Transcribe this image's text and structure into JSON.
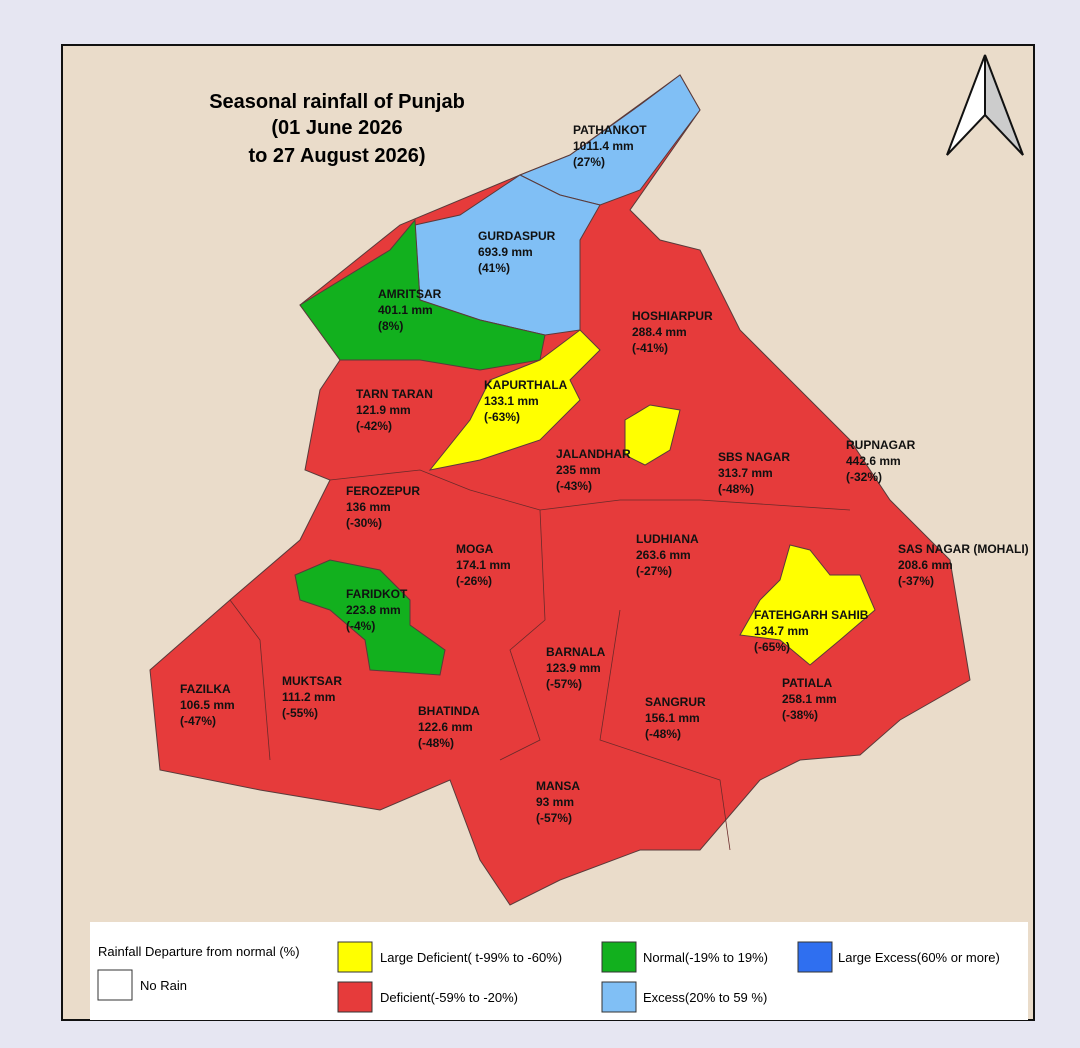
{
  "title": [
    "Seasonal rainfall of Punjab",
    "(01 June 2026",
    "to 27 August 2026)"
  ],
  "districts": [
    {
      "name": "PATHANKOT",
      "rainfall": "1011.4 mm",
      "departure": "(27%)"
    },
    {
      "name": "GURDASPUR",
      "rainfall": "693.9 mm",
      "departure": "(41%)"
    },
    {
      "name": "AMRITSAR",
      "rainfall": "401.1 mm",
      "departure": "(8%)"
    },
    {
      "name": "HOSHIARPUR",
      "rainfall": "288.4 mm",
      "departure": "(-41%)"
    },
    {
      "name": "TARN TARAN",
      "rainfall": "121.9 mm",
      "departure": "(-42%)"
    },
    {
      "name": "KAPURTHALA",
      "rainfall": "133.1 mm",
      "departure": "(-63%)"
    },
    {
      "name": "JALANDHAR",
      "rainfall": "235 mm",
      "departure": "(-43%)"
    },
    {
      "name": "SBS NAGAR",
      "rainfall": "313.7 mm",
      "departure": "(-48%)"
    },
    {
      "name": "RUPNAGAR",
      "rainfall": "442.6 mm",
      "departure": "(-32%)"
    },
    {
      "name": "FEROZEPUR",
      "rainfall": "136 mm",
      "departure": "(-30%)"
    },
    {
      "name": "MOGA",
      "rainfall": "174.1 mm",
      "departure": "(-26%)"
    },
    {
      "name": "LUDHIANA",
      "rainfall": "263.6 mm",
      "departure": "(-27%)"
    },
    {
      "name": "SAS NAGAR (MOHALI)",
      "rainfall": "208.6 mm",
      "departure": "(-37%)"
    },
    {
      "name": "FARIDKOT",
      "rainfall": "223.8 mm",
      "departure": "(-4%)"
    },
    {
      "name": "FATEHGARH SAHIB",
      "rainfall": "134.7 mm",
      "departure": "(-65%)"
    },
    {
      "name": "BARNALA",
      "rainfall": "123.9 mm",
      "departure": "(-57%)"
    },
    {
      "name": "FAZILKA",
      "rainfall": "106.5 mm",
      "departure": "(-47%)"
    },
    {
      "name": "MUKTSAR",
      "rainfall": "111.2 mm",
      "departure": "(-55%)"
    },
    {
      "name": "BHATINDA",
      "rainfall": "122.6 mm",
      "departure": "(-48%)"
    },
    {
      "name": "PATIALA",
      "rainfall": "258.1 mm",
      "departure": "(-38%)"
    },
    {
      "name": "SANGRUR",
      "rainfall": "156.1 mm",
      "departure": "(-48%)"
    },
    {
      "name": "MANSA",
      "rainfall": "93 mm",
      "departure": "(-57%)"
    }
  ],
  "legend": {
    "title": "Rainfall Departure from normal (%)",
    "items": [
      {
        "label": "No Rain",
        "color": "#ffffff"
      },
      {
        "label": "Large Deficient( t-99% to -60%)",
        "color": "#ffff00"
      },
      {
        "label": "Deficient(-59% to -20%)",
        "color": "#e63b3b"
      },
      {
        "label": "Normal(-19% to 19%)",
        "color": "#12b01e"
      },
      {
        "label": "Excess(20% to 59 %)",
        "color": "#80bff5"
      },
      {
        "label": "Large Excess(60% or more)",
        "color": "#2f6ff0"
      }
    ]
  }
}
